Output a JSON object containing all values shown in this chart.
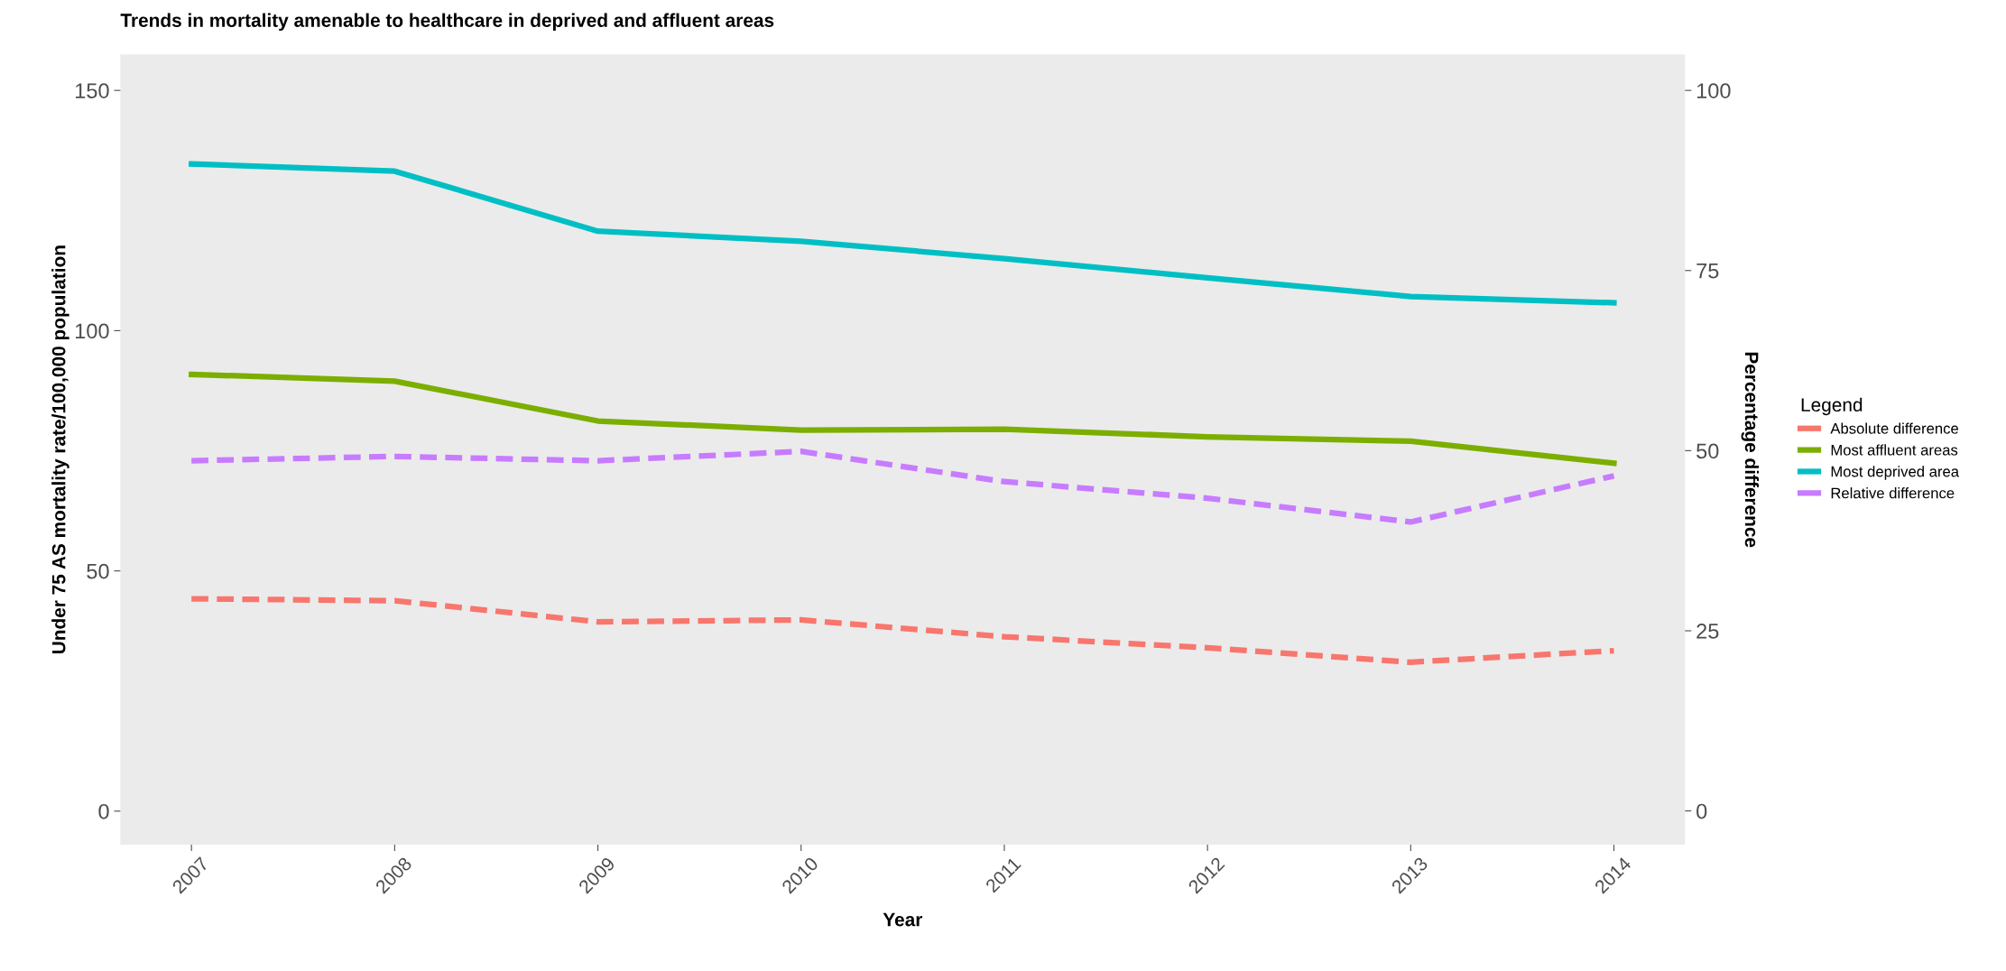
{
  "chart_data": {
    "type": "line",
    "title": "Trends in mortality amenable to healthcare in deprived and affluent areas",
    "xlabel": "Year",
    "ylabel": "Under 75 AS mortality rate/100,000 population",
    "y2label": "Percentage difference",
    "legend_title": "Legend",
    "legend": "right",
    "grid": false,
    "categories": [
      "2007",
      "2008",
      "2009",
      "2010",
      "2011",
      "2012",
      "2013",
      "2014"
    ],
    "ylim": [
      -7,
      157.5
    ],
    "yticks": [
      0,
      50,
      100,
      150
    ],
    "y2lim": [
      -4.7,
      105
    ],
    "y2ticks": [
      0,
      25,
      50,
      75,
      100
    ],
    "series": [
      {
        "name": "Absolute difference",
        "color": "#f8766d",
        "line_style": "dashed",
        "values": [
          44.2,
          43.8,
          39.4,
          39.8,
          36.3,
          34.0,
          31.0,
          33.4
        ]
      },
      {
        "name": "Most affluent areas",
        "color": "#7cae00",
        "line_style": "solid",
        "values": [
          90.9,
          89.5,
          81.2,
          79.3,
          79.5,
          77.9,
          77.0,
          72.4
        ]
      },
      {
        "name": "Most deprived area",
        "color": "#00bfc4",
        "line_style": "solid",
        "values": [
          134.7,
          133.2,
          120.7,
          118.6,
          115.0,
          111.0,
          107.1,
          105.8
        ]
      },
      {
        "name": "Relative difference",
        "color": "#c77cff",
        "line_style": "dashed",
        "axis": "y2",
        "values": [
          48.6,
          49.2,
          48.6,
          49.9,
          45.7,
          43.4,
          40.1,
          46.5
        ]
      }
    ]
  }
}
